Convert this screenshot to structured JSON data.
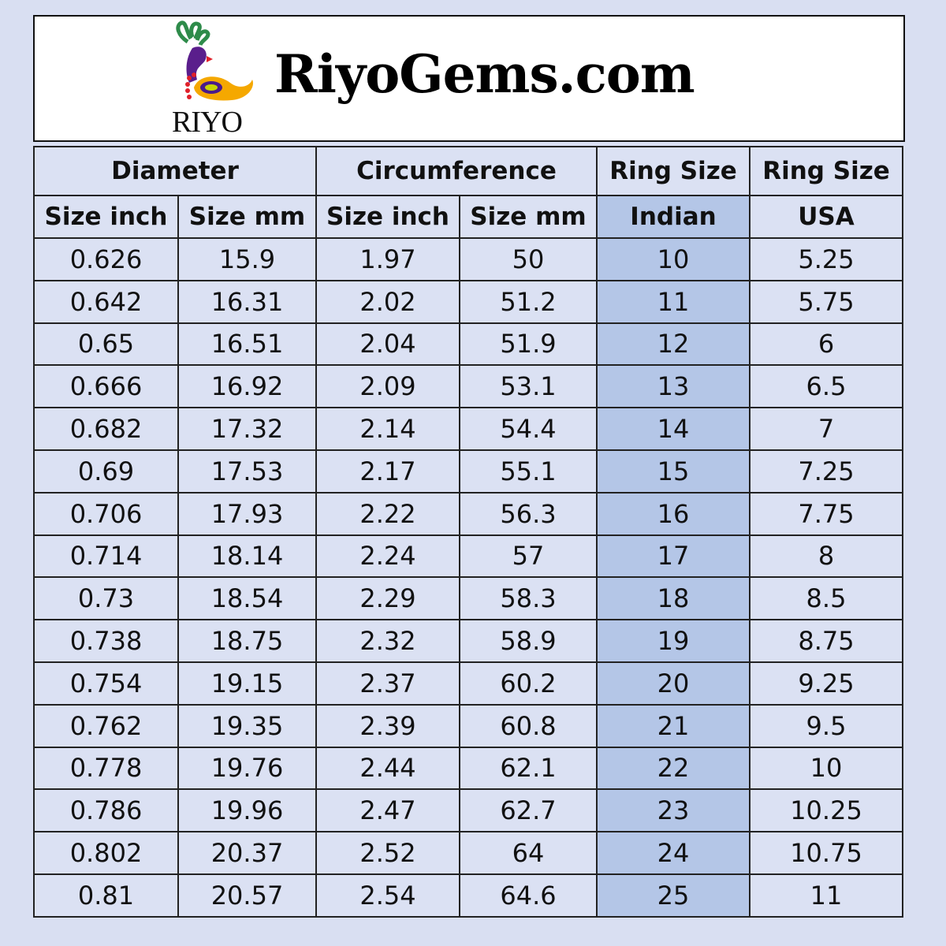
{
  "banner": {
    "logo_text": "RIYO",
    "site_title": "RiyoGems.com"
  },
  "colors": {
    "background": "#d9dff2",
    "highlight": "#b4c6e7"
  },
  "table": {
    "group_headers": [
      "Diameter",
      "Circumference",
      "Ring Size",
      "Ring Size"
    ],
    "sub_headers": [
      "Size inch",
      "Size mm",
      "Size inch",
      "Size mm",
      "Indian",
      "USA"
    ],
    "rows": [
      [
        "0.626",
        "15.9",
        "1.97",
        "50",
        "10",
        "5.25"
      ],
      [
        "0.642",
        "16.31",
        "2.02",
        "51.2",
        "11",
        "5.75"
      ],
      [
        "0.65",
        "16.51",
        "2.04",
        "51.9",
        "12",
        "6"
      ],
      [
        "0.666",
        "16.92",
        "2.09",
        "53.1",
        "13",
        "6.5"
      ],
      [
        "0.682",
        "17.32",
        "2.14",
        "54.4",
        "14",
        "7"
      ],
      [
        "0.69",
        "17.53",
        "2.17",
        "55.1",
        "15",
        "7.25"
      ],
      [
        "0.706",
        "17.93",
        "2.22",
        "56.3",
        "16",
        "7.75"
      ],
      [
        "0.714",
        "18.14",
        "2.24",
        "57",
        "17",
        "8"
      ],
      [
        "0.73",
        "18.54",
        "2.29",
        "58.3",
        "18",
        "8.5"
      ],
      [
        "0.738",
        "18.75",
        "2.32",
        "58.9",
        "19",
        "8.75"
      ],
      [
        "0.754",
        "19.15",
        "2.37",
        "60.2",
        "20",
        "9.25"
      ],
      [
        "0.762",
        "19.35",
        "2.39",
        "60.8",
        "21",
        "9.5"
      ],
      [
        "0.778",
        "19.76",
        "2.44",
        "62.1",
        "22",
        "10"
      ],
      [
        "0.786",
        "19.96",
        "2.47",
        "62.7",
        "23",
        "10.25"
      ],
      [
        "0.802",
        "20.37",
        "2.52",
        "64",
        "24",
        "10.75"
      ],
      [
        "0.81",
        "20.57",
        "2.54",
        "64.6",
        "25",
        "11"
      ]
    ]
  }
}
